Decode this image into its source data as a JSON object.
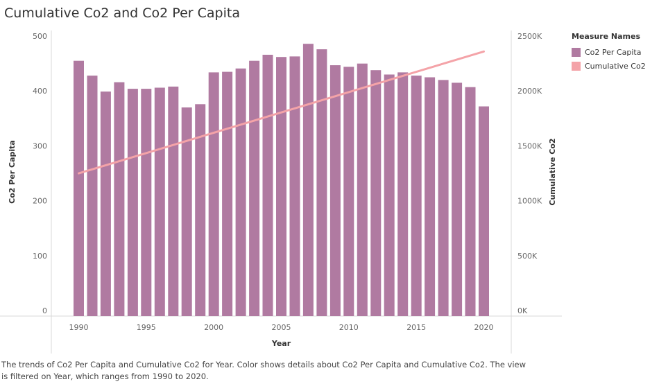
{
  "chart_data": {
    "type": "bar",
    "title": "Cumulative Co2 and Co2 Per Capita",
    "xlabel": "Year",
    "ylabel": "Co2 Per Capita",
    "y2label": "Cumulative Co2",
    "ylim": [
      0,
      500
    ],
    "y2lim": [
      0,
      2500000
    ],
    "yticks": [
      0,
      100,
      200,
      300,
      400,
      500
    ],
    "y2ticks": [
      "0K",
      "500K",
      "1000K",
      "1500K",
      "2000K",
      "2500K"
    ],
    "xticks": [
      "1990",
      "1995",
      "2000",
      "2005",
      "2010",
      "2015",
      "2020"
    ],
    "legend_title": "Measure Names",
    "legend_position": "right",
    "series": [
      {
        "name": "Co2 Per Capita",
        "type": "bar",
        "axis": "left",
        "color": "#b07aa1",
        "x": [
          1990,
          1991,
          1992,
          1993,
          1994,
          1995,
          1996,
          1997,
          1998,
          1999,
          2000,
          2001,
          2002,
          2003,
          2004,
          2005,
          2006,
          2007,
          2008,
          2009,
          2010,
          2011,
          2012,
          2013,
          2014,
          2015,
          2016,
          2017,
          2018,
          2019,
          2020
        ],
        "values": [
          465,
          438,
          409,
          426,
          414,
          414,
          416,
          418,
          380,
          386,
          444,
          445,
          451,
          465,
          476,
          472,
          473,
          496,
          486,
          457,
          454,
          460,
          448,
          440,
          444,
          438,
          435,
          430,
          425,
          417,
          382
        ]
      },
      {
        "name": "Cumulative Co2",
        "type": "line",
        "axis": "right",
        "color": "#f4a3a8",
        "x": [
          1990,
          2020
        ],
        "values": [
          1300000,
          2410000
        ]
      }
    ]
  },
  "caption": "The trends of Co2 Per Capita and Cumulative Co2 for Year.  Color shows details about Co2 Per Capita and Cumulative Co2. The view is filtered on Year, which ranges from 1990 to 2020."
}
